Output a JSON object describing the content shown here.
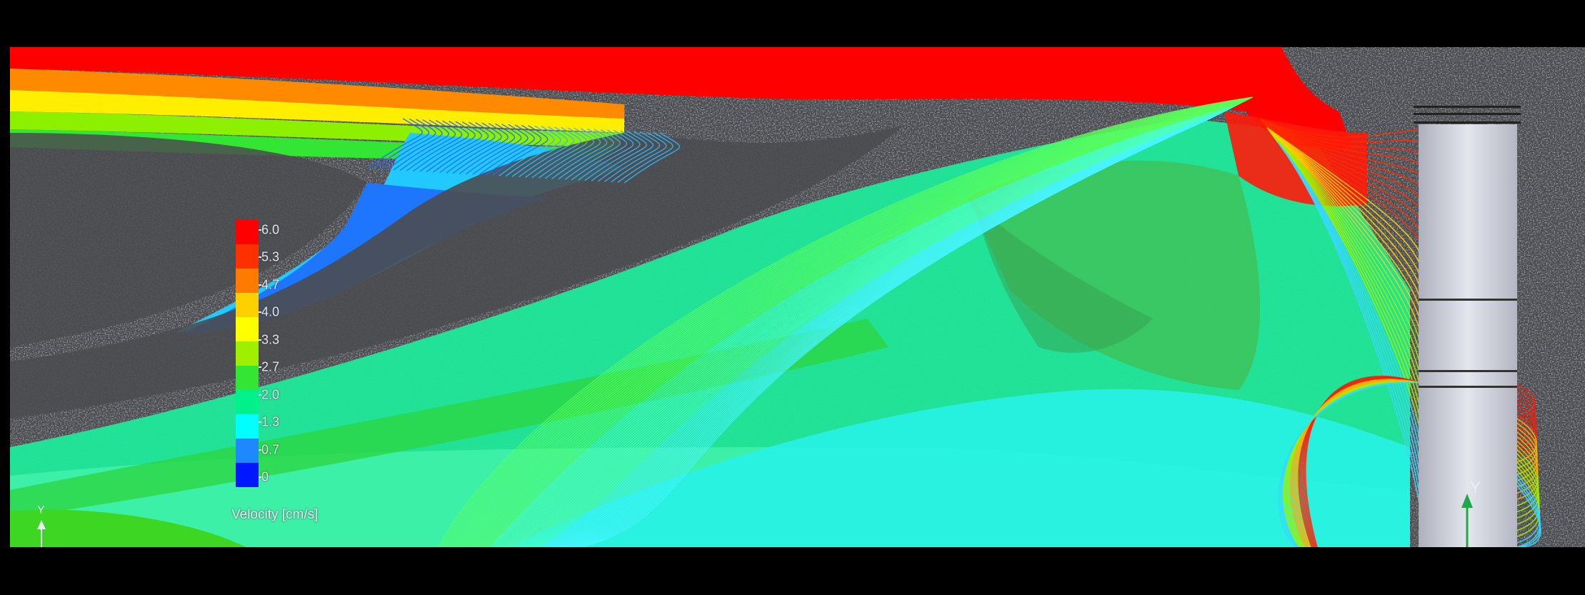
{
  "legend": {
    "title": "Velocity [cm/s]",
    "ticks": [
      "6.0",
      "5.3",
      "4.7",
      "4.0",
      "3.3",
      "2.7",
      "2.0",
      "1.3",
      "0.7",
      "0"
    ],
    "colors": [
      "#ff0000",
      "#ff3000",
      "#ff7a00",
      "#ffd000",
      "#ffff00",
      "#9ff000",
      "#33e633",
      "#00f08a",
      "#00ffff",
      "#1e88ff",
      "#0018ff"
    ]
  },
  "axes": {
    "y_label": "Y"
  },
  "colors": {
    "background": "#4a4b4f",
    "column": "#c9ccd6",
    "frame": "#000000"
  }
}
